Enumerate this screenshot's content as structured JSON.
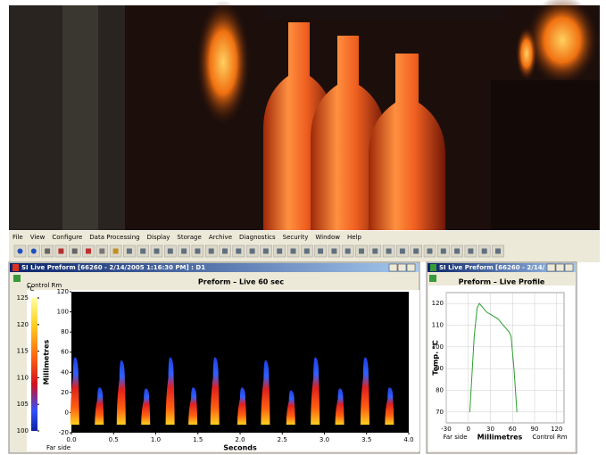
{
  "menu": [
    "File",
    "View",
    "Configure",
    "Data Processing",
    "Display",
    "Storage",
    "Archive",
    "Diagnostics",
    "Security",
    "Window",
    "Help"
  ],
  "window1": {
    "title": "SI Live Preform [66260 - 2/14/2005 1:16:30 PM] : D1",
    "legend": "Control Rm",
    "chart": {
      "type": "heatmap",
      "title": "Preform – Live 60 sec",
      "x_label": "Seconds",
      "y_label": "Millimetres",
      "far_label": "Far side",
      "xlim": [
        0,
        4
      ],
      "xticks": [
        {
          "value": 0,
          "label": "0.0"
        },
        0.5,
        {
          "value": 1,
          "label": "1.0"
        },
        1.5,
        {
          "value": 2,
          "label": "2.0"
        },
        2.5,
        {
          "value": 3,
          "label": "3.0"
        },
        3.5,
        {
          "value": 4,
          "label": "4.0"
        }
      ],
      "ylim": [
        -20,
        120
      ],
      "yticks": [
        -20,
        0,
        20,
        40,
        60,
        80,
        100,
        120
      ],
      "colorbar": {
        "label": "°C",
        "lim": [
          100,
          125
        ],
        "ticks": [
          100,
          105,
          110,
          115,
          120,
          125
        ]
      },
      "pulses": {
        "t": [
          0.03,
          0.32,
          0.58,
          0.87,
          1.16,
          1.43,
          1.69,
          2.01,
          2.29,
          2.59,
          2.88,
          3.17,
          3.47,
          3.76
        ],
        "top": [
          55,
          25,
          52,
          24,
          55,
          25,
          55,
          25,
          52,
          22,
          55,
          24,
          55,
          25
        ]
      }
    }
  },
  "window2": {
    "title": "SI Live Preform [66260 - 2/14/",
    "chart": {
      "type": "line",
      "title": "Preform – Live Profile",
      "x_label": "Millimetres",
      "y_label": "Temp. °C",
      "left_label": "Far side",
      "right_label": "Control Rm",
      "x": [
        2,
        8,
        12,
        15,
        20,
        25,
        30,
        35,
        40,
        45,
        50,
        55,
        58,
        62,
        66
      ],
      "values": [
        70,
        105,
        118,
        120,
        118,
        116,
        115,
        114,
        113,
        111,
        109,
        107,
        105,
        90,
        70
      ],
      "color": "#2e9e2e",
      "xlim": [
        -30,
        130
      ],
      "xticks": [
        -30,
        0,
        30,
        60,
        90,
        120
      ],
      "ylim": [
        65,
        125
      ],
      "yticks": [
        70,
        80,
        90,
        100,
        110,
        120
      ],
      "grid": true
    }
  }
}
